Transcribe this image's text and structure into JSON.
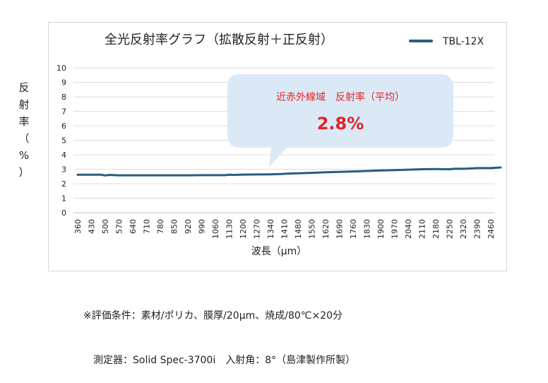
{
  "chart_data": {
    "type": "line",
    "title": "全光反射率グラフ（拡散反射＋正反射）",
    "xlabel": "波長（μm）",
    "ylabel": "反射率（%）",
    "ylim": [
      0,
      10
    ],
    "yticks": [
      0,
      1,
      2,
      3,
      4,
      5,
      6,
      7,
      8,
      9,
      10
    ],
    "xticks": [
      "360",
      "430",
      "500",
      "570",
      "640",
      "710",
      "780",
      "850",
      "920",
      "990",
      "1060",
      "1130",
      "1200",
      "1270",
      "1340",
      "1410",
      "1480",
      "1550",
      "1620",
      "1690",
      "1760",
      "1830",
      "1900",
      "1970",
      "2040",
      "2110",
      "2180",
      "2250",
      "2320",
      "2390",
      "2460"
    ],
    "legend": "top-right",
    "grid": true,
    "series": [
      {
        "name": "TBL-12X",
        "color": "#2a5b7c",
        "x": [
          360,
          430,
          480,
          500,
          520,
          570,
          640,
          710,
          780,
          850,
          920,
          990,
          1060,
          1110,
          1130,
          1150,
          1200,
          1270,
          1340,
          1400,
          1410,
          1480,
          1550,
          1620,
          1690,
          1760,
          1830,
          1900,
          1970,
          2040,
          2110,
          2180,
          2250,
          2280,
          2320,
          2350,
          2390,
          2460,
          2510
        ],
        "y": [
          2.62,
          2.62,
          2.62,
          2.57,
          2.61,
          2.58,
          2.58,
          2.58,
          2.58,
          2.58,
          2.58,
          2.59,
          2.59,
          2.59,
          2.62,
          2.61,
          2.63,
          2.64,
          2.65,
          2.67,
          2.69,
          2.72,
          2.75,
          2.79,
          2.82,
          2.85,
          2.88,
          2.91,
          2.94,
          2.97,
          3.0,
          3.01,
          3.0,
          3.04,
          3.03,
          3.05,
          3.08,
          3.08,
          3.12
        ]
      }
    ],
    "callout": {
      "title": "近赤外線域　反射率（平均）",
      "value": "2.8%",
      "title_color": "#e02424",
      "value_color": "#e02424",
      "fill": "#dbe9f7"
    }
  },
  "notes": [
    "※評価条件：素材/ポリカ、膜厚/20μm、焼成/80℃×20分",
    "　測定器：Solid Spec-3700i　入射角：8°（島津製作所製）"
  ]
}
